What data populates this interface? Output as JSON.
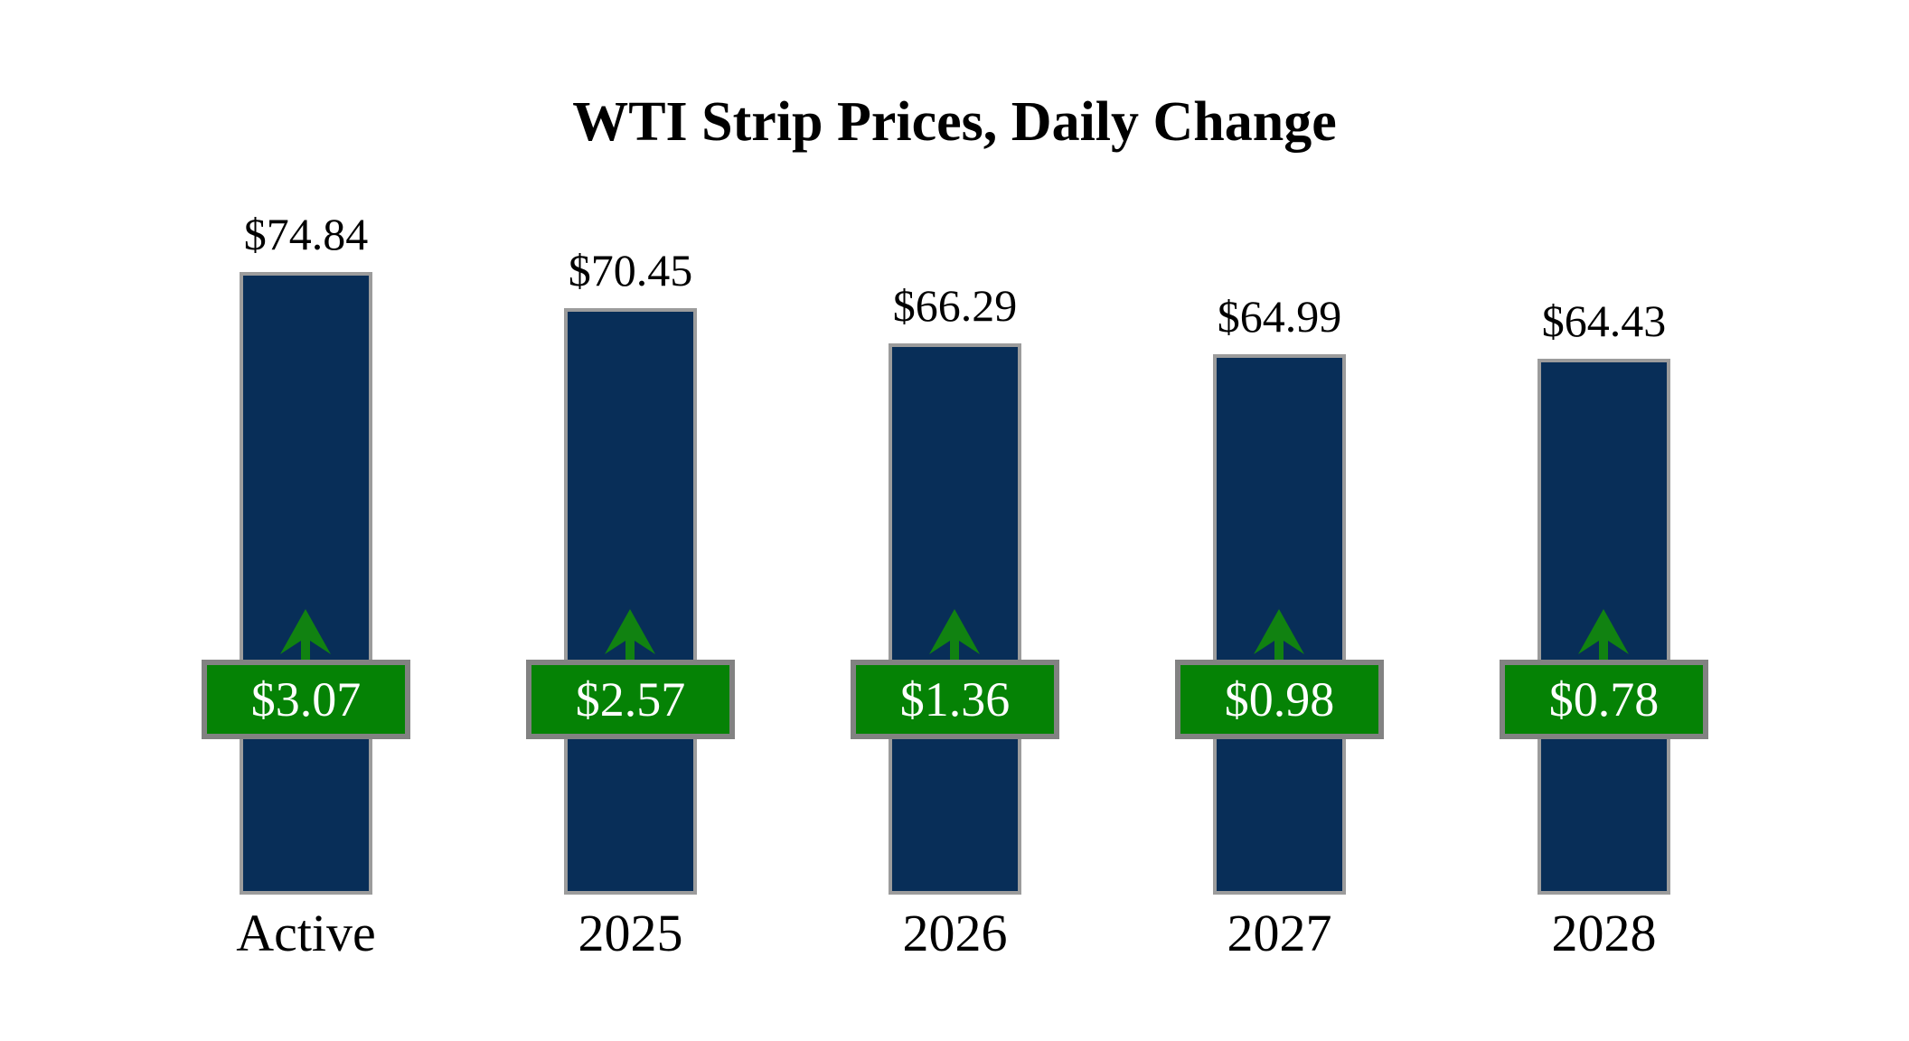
{
  "chart_data": {
    "type": "bar",
    "title": "WTI Strip Prices, Daily Change",
    "categories": [
      "Active",
      "2025",
      "2026",
      "2027",
      "2028"
    ],
    "series": [
      {
        "name": "Strip Price",
        "values": [
          74.84,
          70.45,
          66.29,
          64.99,
          64.43
        ]
      },
      {
        "name": "Daily Change",
        "values": [
          3.07,
          2.57,
          1.36,
          0.98,
          0.78
        ]
      }
    ],
    "price_labels": [
      "$74.84",
      "$70.45",
      "$66.29",
      "$64.99",
      "$64.43"
    ],
    "change_labels": [
      "$3.07",
      "$2.57",
      "$1.36",
      "$0.98",
      "$0.78"
    ],
    "change_direction": "up",
    "xlabel": "",
    "ylabel": "",
    "ylim": [
      0,
      80
    ],
    "grid": false,
    "legend_position": "none",
    "colors": {
      "bar_fill": "#082E58",
      "bar_border": "#9C9C9C",
      "badge_fill": "#058205",
      "badge_border": "#828282",
      "badge_text": "#FFFFFF",
      "arrow": "#118211",
      "label_text": "#000000",
      "background": "#FFFFFF"
    }
  }
}
